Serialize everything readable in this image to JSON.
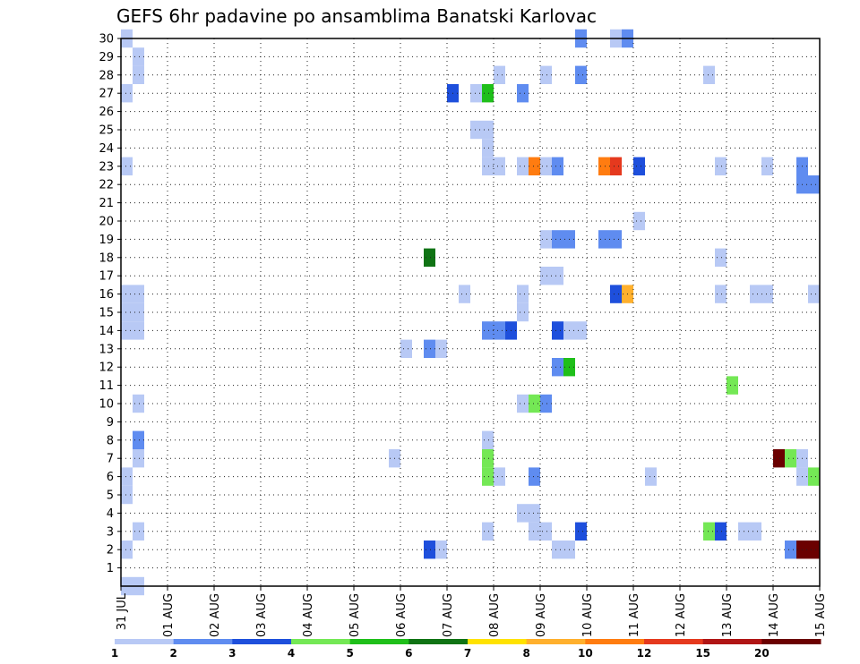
{
  "chart_data": {
    "type": "heatmap",
    "title": "GEFS 6hr padavine po ansamblima Banatski Karlovac",
    "x_tick_labels": [
      "31 JUL",
      "01 AUG",
      "02 AUG",
      "03 AUG",
      "04 AUG",
      "05 AUG",
      "06 AUG",
      "07 AUG",
      "08 AUG",
      "09 AUG",
      "10 AUG",
      "11 AUG",
      "12 AUG",
      "13 AUG",
      "14 AUG",
      "15 AUG"
    ],
    "x_range": [
      0,
      15
    ],
    "y_tick_labels": [
      "1",
      "2",
      "3",
      "4",
      "5",
      "6",
      "7",
      "8",
      "9",
      "10",
      "11",
      "12",
      "13",
      "14",
      "15",
      "16",
      "17",
      "18",
      "19",
      "20",
      "21",
      "22",
      "23",
      "24",
      "25",
      "26",
      "27",
      "28",
      "29",
      "30"
    ],
    "y_range": [
      0,
      30
    ],
    "grid": "dotted",
    "legend": {
      "position": "bottom",
      "boundaries": [
        "1",
        "2",
        "3",
        "4",
        "5",
        "6",
        "7",
        "8",
        "10",
        "12",
        "15",
        "20"
      ],
      "colors": [
        "#b8c9f5",
        "#5f8cf0",
        "#1e4fdc",
        "#74e855",
        "#1fbf1a",
        "#0f7314",
        "#ffe200",
        "#ffb02d",
        "#ff7c10",
        "#e5391e",
        "#b01515",
        "#6b0000"
      ]
    },
    "cells": [
      {
        "x": 0.125,
        "y": 30,
        "level": 1
      },
      {
        "x": 0.375,
        "y": 29,
        "level": 1
      },
      {
        "x": 0.375,
        "y": 28,
        "level": 1
      },
      {
        "x": 0.125,
        "y": 27,
        "level": 1
      },
      {
        "x": 0.125,
        "y": 23,
        "level": 1
      },
      {
        "x": 0.125,
        "y": 16,
        "level": 1
      },
      {
        "x": 0.375,
        "y": 16,
        "level": 1
      },
      {
        "x": 0.125,
        "y": 15,
        "level": 1
      },
      {
        "x": 0.375,
        "y": 15,
        "level": 1
      },
      {
        "x": 0.125,
        "y": 14,
        "level": 1
      },
      {
        "x": 0.375,
        "y": 14,
        "level": 1
      },
      {
        "x": 0.375,
        "y": 10,
        "level": 1
      },
      {
        "x": 0.375,
        "y": 8,
        "level": 2
      },
      {
        "x": 0.375,
        "y": 7,
        "level": 1
      },
      {
        "x": 0.125,
        "y": 6,
        "level": 1
      },
      {
        "x": 0.125,
        "y": 5,
        "level": 1
      },
      {
        "x": 0.375,
        "y": 3,
        "level": 1
      },
      {
        "x": 0.125,
        "y": 2,
        "level": 1
      },
      {
        "x": 0.125,
        "y": 0,
        "level": 1
      },
      {
        "x": 0.375,
        "y": 0,
        "level": 1
      },
      {
        "x": 9.875,
        "y": 30,
        "level": 2
      },
      {
        "x": 10.625,
        "y": 30,
        "level": 1
      },
      {
        "x": 10.875,
        "y": 30,
        "level": 2
      },
      {
        "x": 8.125,
        "y": 28,
        "level": 1
      },
      {
        "x": 9.125,
        "y": 28,
        "level": 1
      },
      {
        "x": 9.875,
        "y": 28,
        "level": 2
      },
      {
        "x": 12.625,
        "y": 28,
        "level": 1
      },
      {
        "x": 7.125,
        "y": 27,
        "level": 3
      },
      {
        "x": 7.625,
        "y": 27,
        "level": 1
      },
      {
        "x": 7.875,
        "y": 27,
        "level": 5
      },
      {
        "x": 8.625,
        "y": 27,
        "level": 2
      },
      {
        "x": 7.625,
        "y": 25,
        "level": 1
      },
      {
        "x": 7.875,
        "y": 25,
        "level": 1
      },
      {
        "x": 7.875,
        "y": 24,
        "level": 1
      },
      {
        "x": 7.875,
        "y": 23,
        "level": 1
      },
      {
        "x": 8.125,
        "y": 23,
        "level": 1
      },
      {
        "x": 8.625,
        "y": 23,
        "level": 1
      },
      {
        "x": 8.875,
        "y": 23,
        "level": 9
      },
      {
        "x": 9.125,
        "y": 23,
        "level": 1
      },
      {
        "x": 9.375,
        "y": 23,
        "level": 2
      },
      {
        "x": 10.375,
        "y": 23,
        "level": 9
      },
      {
        "x": 10.625,
        "y": 23,
        "level": 10
      },
      {
        "x": 11.125,
        "y": 23,
        "level": 3
      },
      {
        "x": 12.875,
        "y": 23,
        "level": 1
      },
      {
        "x": 13.875,
        "y": 23,
        "level": 1
      },
      {
        "x": 14.625,
        "y": 23,
        "level": 2
      },
      {
        "x": 14.625,
        "y": 22,
        "level": 2
      },
      {
        "x": 14.875,
        "y": 22,
        "level": 2
      },
      {
        "x": 11.125,
        "y": 20,
        "level": 1
      },
      {
        "x": 9.125,
        "y": 19,
        "level": 1
      },
      {
        "x": 9.375,
        "y": 19,
        "level": 2
      },
      {
        "x": 9.625,
        "y": 19,
        "level": 2
      },
      {
        "x": 10.375,
        "y": 19,
        "level": 2
      },
      {
        "x": 10.625,
        "y": 19,
        "level": 2
      },
      {
        "x": 6.625,
        "y": 18,
        "level": 6
      },
      {
        "x": 12.875,
        "y": 18,
        "level": 1
      },
      {
        "x": 9.125,
        "y": 17,
        "level": 1
      },
      {
        "x": 9.375,
        "y": 17,
        "level": 1
      },
      {
        "x": 7.375,
        "y": 16,
        "level": 1
      },
      {
        "x": 8.625,
        "y": 16,
        "level": 1
      },
      {
        "x": 10.625,
        "y": 16,
        "level": 3
      },
      {
        "x": 10.875,
        "y": 16,
        "level": 8
      },
      {
        "x": 12.875,
        "y": 16,
        "level": 1
      },
      {
        "x": 13.625,
        "y": 16,
        "level": 1
      },
      {
        "x": 13.875,
        "y": 16,
        "level": 1
      },
      {
        "x": 14.875,
        "y": 16,
        "level": 1
      },
      {
        "x": 8.625,
        "y": 15,
        "level": 1
      },
      {
        "x": 7.875,
        "y": 14,
        "level": 2
      },
      {
        "x": 8.125,
        "y": 14,
        "level": 2
      },
      {
        "x": 8.375,
        "y": 14,
        "level": 3
      },
      {
        "x": 9.375,
        "y": 14,
        "level": 3
      },
      {
        "x": 9.625,
        "y": 14,
        "level": 1
      },
      {
        "x": 9.875,
        "y": 14,
        "level": 1
      },
      {
        "x": 6.125,
        "y": 13,
        "level": 1
      },
      {
        "x": 6.625,
        "y": 13,
        "level": 2
      },
      {
        "x": 6.875,
        "y": 13,
        "level": 1
      },
      {
        "x": 9.375,
        "y": 12,
        "level": 2
      },
      {
        "x": 9.625,
        "y": 12,
        "level": 5
      },
      {
        "x": 13.125,
        "y": 11,
        "level": 4
      },
      {
        "x": 8.625,
        "y": 10,
        "level": 1
      },
      {
        "x": 8.875,
        "y": 10,
        "level": 4
      },
      {
        "x": 9.125,
        "y": 10,
        "level": 2
      },
      {
        "x": 7.875,
        "y": 8,
        "level": 1
      },
      {
        "x": 5.875,
        "y": 7,
        "level": 1
      },
      {
        "x": 7.875,
        "y": 7,
        "level": 4
      },
      {
        "x": 14.125,
        "y": 7,
        "level": 12
      },
      {
        "x": 14.375,
        "y": 7,
        "level": 4
      },
      {
        "x": 14.625,
        "y": 7,
        "level": 1
      },
      {
        "x": 7.875,
        "y": 6,
        "level": 4
      },
      {
        "x": 8.125,
        "y": 6,
        "level": 1
      },
      {
        "x": 8.875,
        "y": 6,
        "level": 2
      },
      {
        "x": 11.375,
        "y": 6,
        "level": 1
      },
      {
        "x": 14.625,
        "y": 6,
        "level": 1
      },
      {
        "x": 14.875,
        "y": 6,
        "level": 4
      },
      {
        "x": 8.625,
        "y": 4,
        "level": 1
      },
      {
        "x": 8.875,
        "y": 4,
        "level": 1
      },
      {
        "x": 7.875,
        "y": 3,
        "level": 1
      },
      {
        "x": 8.875,
        "y": 3,
        "level": 1
      },
      {
        "x": 9.125,
        "y": 3,
        "level": 1
      },
      {
        "x": 9.875,
        "y": 3,
        "level": 3
      },
      {
        "x": 12.625,
        "y": 3,
        "level": 4
      },
      {
        "x": 12.875,
        "y": 3,
        "level": 3
      },
      {
        "x": 13.375,
        "y": 3,
        "level": 1
      },
      {
        "x": 13.625,
        "y": 3,
        "level": 1
      },
      {
        "x": 6.625,
        "y": 2,
        "level": 3
      },
      {
        "x": 6.875,
        "y": 2,
        "level": 1
      },
      {
        "x": 9.375,
        "y": 2,
        "level": 1
      },
      {
        "x": 9.625,
        "y": 2,
        "level": 1
      },
      {
        "x": 14.375,
        "y": 2,
        "level": 2
      },
      {
        "x": 14.625,
        "y": 2,
        "level": 12
      },
      {
        "x": 14.875,
        "y": 2,
        "level": 12
      }
    ]
  }
}
